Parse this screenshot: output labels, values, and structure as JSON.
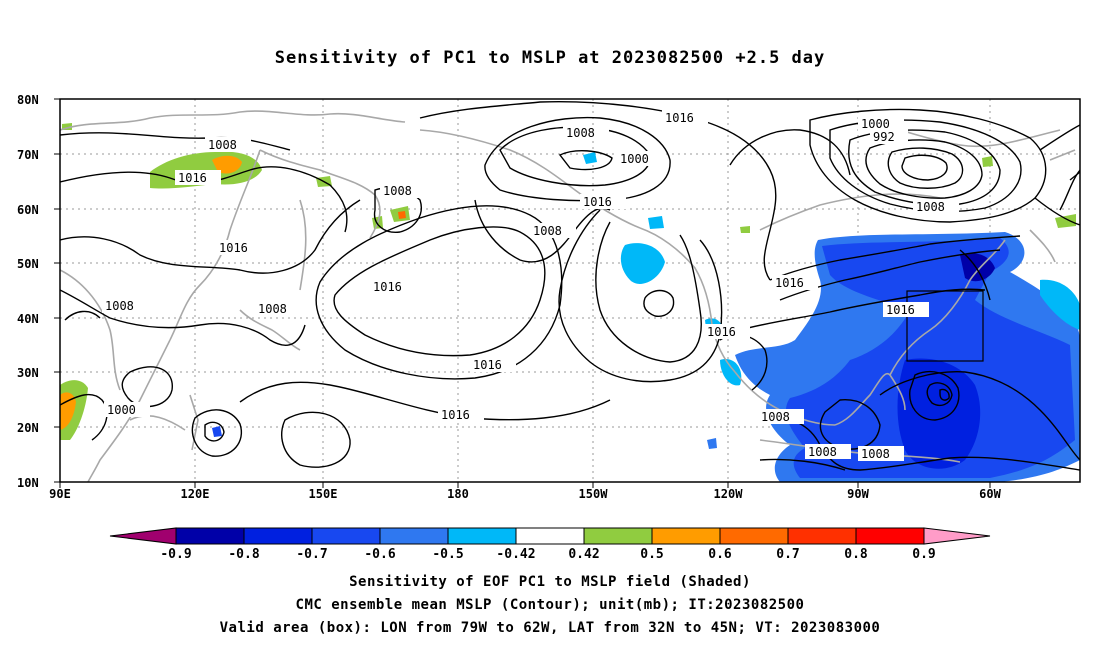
{
  "title": "Sensitivity of PC1 to MSLP at 2023082500 +2.5 day",
  "lat_labels": [
    "80N",
    "70N",
    "60N",
    "50N",
    "40N",
    "30N",
    "20N",
    "10N"
  ],
  "lon_labels": [
    "90E",
    "120E",
    "150E",
    "180",
    "150W",
    "120W",
    "90W",
    "60W"
  ],
  "contour_labels": [
    "1008",
    "1016",
    "1008",
    "1016",
    "1008",
    "1008",
    "1016",
    "1000",
    "1008",
    "1016",
    "1016",
    "1008",
    "1016",
    "1016",
    "1000",
    "992",
    "1000",
    "1008",
    "1016",
    "1016",
    "1016",
    "1008",
    "1008",
    "1008"
  ],
  "colorbar": {
    "labels": [
      "-0.9",
      "-0.8",
      "-0.7",
      "-0.6",
      "-0.5",
      "-0.42",
      "0.42",
      "0.5",
      "0.6",
      "0.7",
      "0.8",
      "0.9"
    ],
    "colors": [
      "#a0006e",
      "#0000a8",
      "#0020e0",
      "#1848f0",
      "#2f78f0",
      "#00b8f8",
      "#ffffff",
      "#90cc40",
      "#ff9c00",
      "#ff6a00",
      "#ff3000",
      "#ff0000",
      "#ff9cc8"
    ]
  },
  "captions": [
    "Sensitivity of EOF PC1 to MSLP field (Shaded)",
    "CMC ensemble mean MSLP (Contour); unit(mb); IT:2023082500",
    "Valid area (box): LON from 79W to 62W, LAT from 32N to 45N; VT: 2023083000"
  ]
}
